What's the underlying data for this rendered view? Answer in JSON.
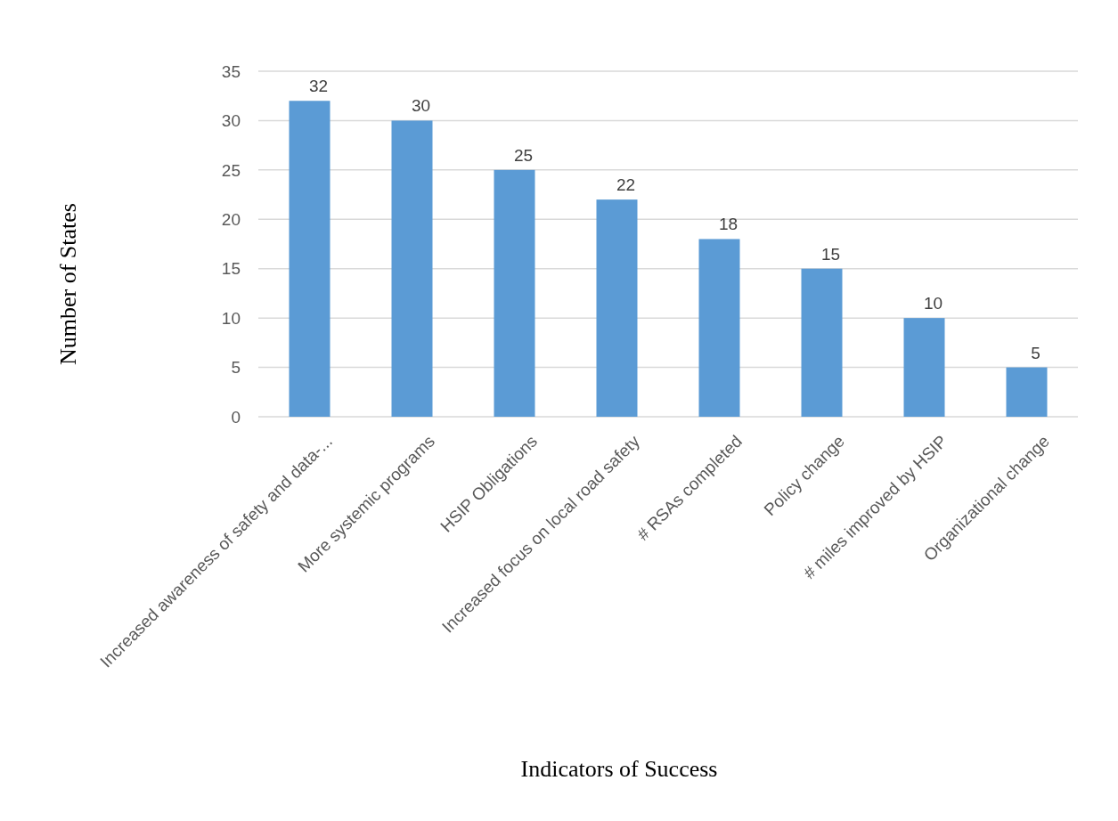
{
  "chart_data": {
    "type": "bar",
    "xlabel": "Indicators of Success",
    "ylabel": "Number of States",
    "categories": [
      "Increased awareness of safety and data-...",
      "More systemic programs",
      "HSIP Obligations",
      "Increased focus on local road safety",
      "# RSAs completed",
      "Policy change",
      "# miles improved by HSIP",
      "Organizational change"
    ],
    "values": [
      32,
      30,
      25,
      22,
      18,
      15,
      10,
      5
    ],
    "color": "#5b9bd5",
    "data_labels": true,
    "ylim": [
      0,
      35
    ],
    "yticks": [
      0,
      5,
      10,
      15,
      20,
      25,
      30,
      35
    ],
    "grid": "y"
  }
}
